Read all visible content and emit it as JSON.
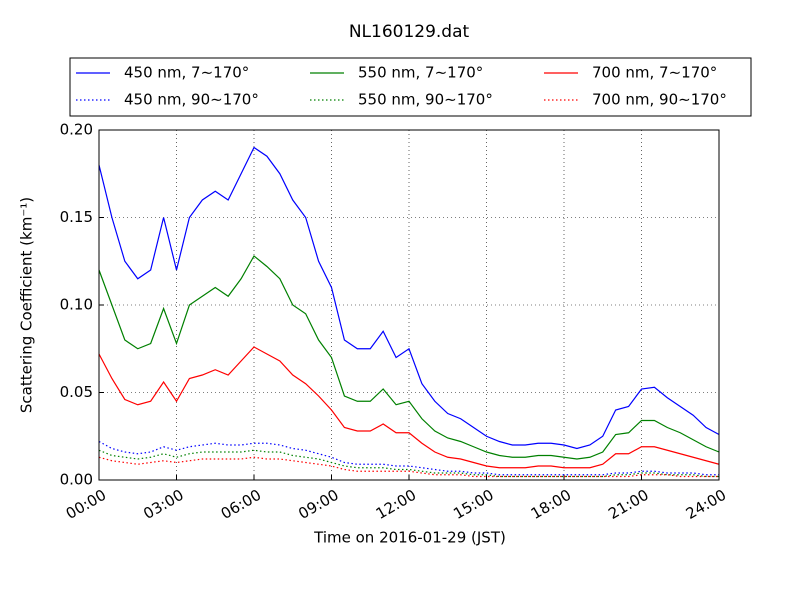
{
  "chart_data": {
    "type": "line",
    "title": "NL160129.dat",
    "xlabel": "Time on 2016-01-29 (JST)",
    "ylabel": "Scattering Coefficient (km⁻¹)",
    "x": [
      0,
      0.5,
      1,
      1.5,
      2,
      2.5,
      3,
      3.5,
      4,
      4.5,
      5,
      5.5,
      6,
      6.5,
      7,
      7.5,
      8,
      8.5,
      9,
      9.5,
      10,
      10.5,
      11,
      11.5,
      12,
      12.5,
      13,
      13.5,
      14,
      14.5,
      15,
      15.5,
      16,
      16.5,
      17,
      17.5,
      18,
      18.5,
      19,
      19.5,
      20,
      20.5,
      21,
      21.5,
      22,
      22.5,
      23,
      23.5,
      24
    ],
    "xlim": [
      0,
      24
    ],
    "xticks": [
      {
        "value": 0,
        "label": "00:00"
      },
      {
        "value": 3,
        "label": "03:00"
      },
      {
        "value": 6,
        "label": "06:00"
      },
      {
        "value": 9,
        "label": "09:00"
      },
      {
        "value": 12,
        "label": "12:00"
      },
      {
        "value": 15,
        "label": "15:00"
      },
      {
        "value": 18,
        "label": "18:00"
      },
      {
        "value": 21,
        "label": "21:00"
      },
      {
        "value": 24,
        "label": "24:00"
      }
    ],
    "ylim": [
      0,
      0.2
    ],
    "yticks": [
      {
        "value": 0,
        "label": "0.00"
      },
      {
        "value": 0.05,
        "label": "0.05"
      },
      {
        "value": 0.1,
        "label": "0.10"
      },
      {
        "value": 0.15,
        "label": "0.15"
      },
      {
        "value": 0.2,
        "label": "0.20"
      }
    ],
    "grid": true,
    "legend": "top",
    "series": [
      {
        "name": "450 nm, 7∼170°",
        "color": "#0000ff",
        "linestyle": "solid",
        "values": [
          0.18,
          0.15,
          0.125,
          0.115,
          0.12,
          0.15,
          0.12,
          0.15,
          0.16,
          0.165,
          0.16,
          0.175,
          0.19,
          0.185,
          0.175,
          0.16,
          0.15,
          0.125,
          0.11,
          0.08,
          0.075,
          0.075,
          0.085,
          0.07,
          0.075,
          0.055,
          0.045,
          0.038,
          0.035,
          0.03,
          0.025,
          0.022,
          0.02,
          0.02,
          0.021,
          0.021,
          0.02,
          0.018,
          0.02,
          0.025,
          0.04,
          0.042,
          0.052,
          0.053,
          0.047,
          0.042,
          0.037,
          0.03,
          0.026
        ]
      },
      {
        "name": "450 nm, 90∼170°",
        "color": "#0000ff",
        "linestyle": "dotted",
        "values": [
          0.022,
          0.018,
          0.016,
          0.015,
          0.016,
          0.019,
          0.017,
          0.019,
          0.02,
          0.021,
          0.02,
          0.02,
          0.021,
          0.021,
          0.02,
          0.018,
          0.017,
          0.015,
          0.013,
          0.01,
          0.009,
          0.009,
          0.009,
          0.008,
          0.008,
          0.007,
          0.006,
          0.005,
          0.005,
          0.004,
          0.004,
          0.003,
          0.003,
          0.003,
          0.003,
          0.003,
          0.003,
          0.003,
          0.003,
          0.003,
          0.004,
          0.004,
          0.005,
          0.005,
          0.004,
          0.004,
          0.004,
          0.003,
          0.003
        ]
      },
      {
        "name": "550 nm, 7∼170°",
        "color": "#008000",
        "linestyle": "solid",
        "values": [
          0.12,
          0.1,
          0.08,
          0.075,
          0.078,
          0.098,
          0.078,
          0.1,
          0.105,
          0.11,
          0.105,
          0.115,
          0.128,
          0.122,
          0.115,
          0.1,
          0.095,
          0.08,
          0.07,
          0.048,
          0.045,
          0.045,
          0.052,
          0.043,
          0.045,
          0.035,
          0.028,
          0.024,
          0.022,
          0.019,
          0.016,
          0.014,
          0.013,
          0.013,
          0.014,
          0.014,
          0.013,
          0.012,
          0.013,
          0.016,
          0.026,
          0.027,
          0.034,
          0.034,
          0.03,
          0.027,
          0.023,
          0.019,
          0.016
        ]
      },
      {
        "name": "550 nm, 90∼170°",
        "color": "#008000",
        "linestyle": "dotted",
        "values": [
          0.017,
          0.014,
          0.013,
          0.012,
          0.013,
          0.015,
          0.013,
          0.015,
          0.016,
          0.016,
          0.016,
          0.016,
          0.017,
          0.016,
          0.016,
          0.014,
          0.013,
          0.012,
          0.01,
          0.008,
          0.007,
          0.007,
          0.007,
          0.006,
          0.006,
          0.005,
          0.004,
          0.004,
          0.004,
          0.003,
          0.003,
          0.002,
          0.002,
          0.002,
          0.002,
          0.002,
          0.002,
          0.002,
          0.002,
          0.002,
          0.003,
          0.003,
          0.004,
          0.004,
          0.003,
          0.003,
          0.003,
          0.002,
          0.002
        ]
      },
      {
        "name": "700 nm, 7∼170°",
        "color": "#ff0000",
        "linestyle": "solid",
        "values": [
          0.072,
          0.058,
          0.046,
          0.043,
          0.045,
          0.056,
          0.045,
          0.058,
          0.06,
          0.063,
          0.06,
          0.068,
          0.076,
          0.072,
          0.068,
          0.06,
          0.055,
          0.048,
          0.04,
          0.03,
          0.028,
          0.028,
          0.032,
          0.027,
          0.027,
          0.021,
          0.016,
          0.013,
          0.012,
          0.01,
          0.008,
          0.007,
          0.007,
          0.007,
          0.008,
          0.008,
          0.007,
          0.007,
          0.007,
          0.009,
          0.015,
          0.015,
          0.019,
          0.019,
          0.017,
          0.015,
          0.013,
          0.011,
          0.009
        ]
      },
      {
        "name": "700 nm, 90∼170°",
        "color": "#ff0000",
        "linestyle": "dotted",
        "values": [
          0.013,
          0.011,
          0.01,
          0.009,
          0.01,
          0.011,
          0.01,
          0.011,
          0.012,
          0.012,
          0.012,
          0.012,
          0.013,
          0.012,
          0.012,
          0.011,
          0.01,
          0.009,
          0.008,
          0.006,
          0.005,
          0.005,
          0.005,
          0.005,
          0.005,
          0.004,
          0.003,
          0.003,
          0.003,
          0.002,
          0.002,
          0.002,
          0.002,
          0.002,
          0.002,
          0.002,
          0.002,
          0.002,
          0.002,
          0.002,
          0.002,
          0.002,
          0.003,
          0.003,
          0.003,
          0.002,
          0.002,
          0.002,
          0.002
        ]
      }
    ]
  }
}
